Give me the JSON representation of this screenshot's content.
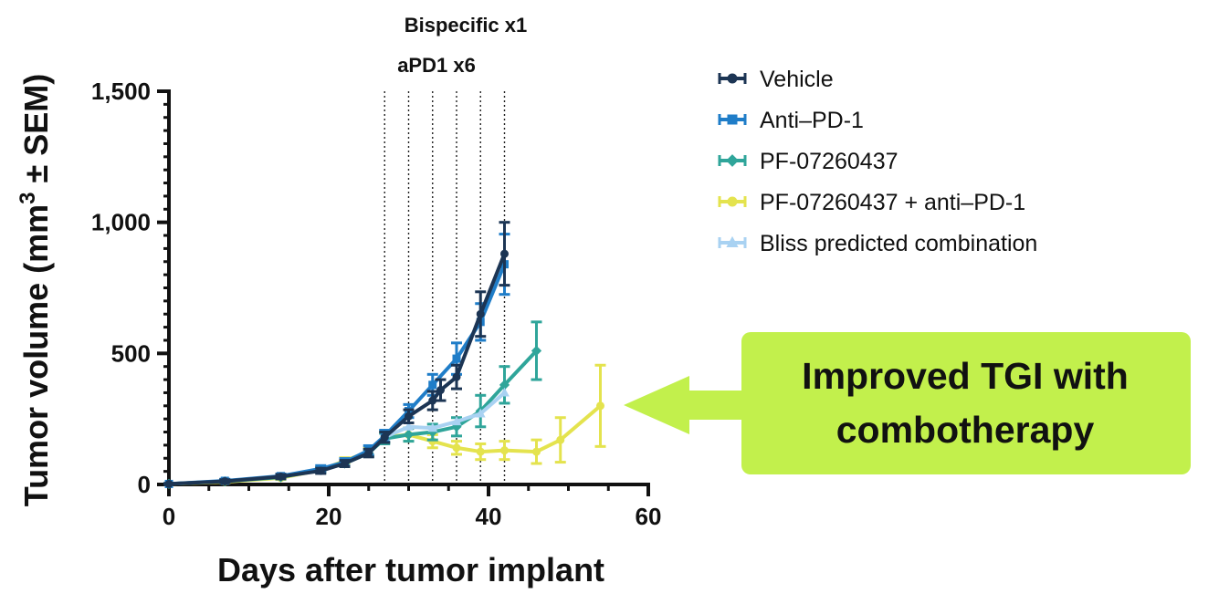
{
  "chart_data": {
    "type": "line",
    "xlabel": "Days after tumor implant",
    "ylabel_main": "Tumor volume (mm",
    "ylabel_sup": "3",
    "ylabel_tail": " ± SEM)",
    "xlim": [
      0,
      60
    ],
    "ylim": [
      0,
      1500
    ],
    "x_ticks": [
      0,
      20,
      40,
      60
    ],
    "x_tick_labels": [
      "0",
      "20",
      "40",
      "60"
    ],
    "y_ticks": [
      0,
      500,
      1000,
      1500
    ],
    "y_tick_labels": [
      "0",
      "500",
      "1,000",
      "1,500"
    ],
    "dosing_days": [
      27,
      30,
      33,
      36,
      39,
      42
    ],
    "annotations": [
      "Bispecific x1",
      "aPD1 x6"
    ],
    "legend_position": "top-right",
    "series": [
      {
        "name": "Vehicle",
        "color": "#1c3554",
        "marker": "circle",
        "x": [
          0,
          7,
          14,
          19,
          22,
          25,
          27,
          30,
          33,
          34,
          36,
          39,
          42
        ],
        "y": [
          2,
          12,
          30,
          52,
          80,
          120,
          180,
          260,
          320,
          360,
          410,
          650,
          880
        ],
        "err": [
          2,
          6,
          8,
          10,
          12,
          15,
          20,
          25,
          35,
          40,
          45,
          85,
          120
        ]
      },
      {
        "name": "Anti–PD-1",
        "color": "#1f7dc8",
        "marker": "square",
        "x": [
          0,
          7,
          14,
          19,
          22,
          25,
          27,
          30,
          33,
          36,
          39,
          42
        ],
        "y": [
          2,
          14,
          32,
          60,
          85,
          130,
          185,
          280,
          380,
          480,
          620,
          840
        ],
        "err": [
          2,
          6,
          8,
          12,
          14,
          18,
          22,
          25,
          40,
          60,
          70,
          115
        ]
      },
      {
        "name": "PF-07260437",
        "color": "#2fa59a",
        "marker": "diamond",
        "x": [
          0,
          7,
          14,
          19,
          22,
          25,
          27,
          30,
          33,
          36,
          39,
          42,
          46
        ],
        "y": [
          2,
          12,
          28,
          55,
          80,
          120,
          175,
          190,
          200,
          220,
          280,
          380,
          510
        ],
        "err": [
          2,
          5,
          7,
          10,
          12,
          14,
          20,
          25,
          30,
          35,
          60,
          70,
          110
        ]
      },
      {
        "name": "PF-07260437 + anti–PD-1",
        "color": "#e4e34e",
        "marker": "circle",
        "x": [
          0,
          7,
          14,
          19,
          22,
          25,
          27,
          30,
          33,
          36,
          39,
          42,
          46,
          49,
          54
        ],
        "y": [
          2,
          10,
          25,
          55,
          90,
          125,
          180,
          190,
          165,
          140,
          125,
          130,
          125,
          170,
          300
        ],
        "err": [
          2,
          5,
          6,
          10,
          12,
          14,
          20,
          25,
          25,
          25,
          30,
          35,
          45,
          85,
          155
        ]
      },
      {
        "name": "Bliss predicted combination",
        "color": "#a9d2f2",
        "marker": "triangle",
        "x": [
          27,
          30,
          33,
          36,
          39,
          42
        ],
        "y": [
          180,
          220,
          215,
          240,
          270,
          350
        ],
        "err": [
          0,
          0,
          0,
          0,
          0,
          0
        ]
      }
    ]
  },
  "callout": {
    "line1": "Improved TGI with",
    "line2": "combotherapy",
    "fill_color": "#c2f04c"
  }
}
